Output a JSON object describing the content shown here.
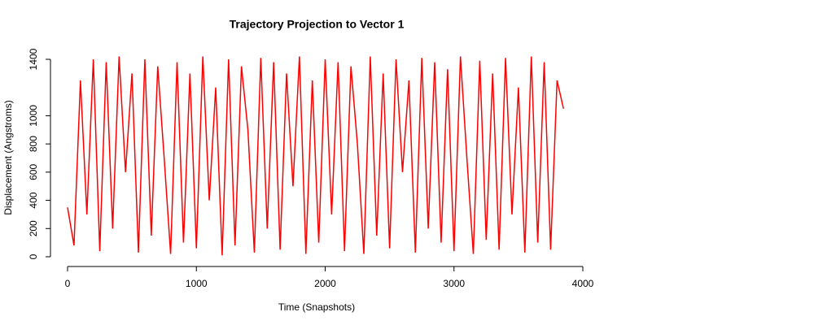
{
  "chart_data": {
    "type": "line",
    "title": "Trajectory Projection to Vector 1",
    "x_label": "Time (Snapshots)",
    "y_label": "Displacement (Angstroms)",
    "x": [
      0,
      50,
      100,
      150,
      200,
      250,
      300,
      350,
      400,
      450,
      500,
      550,
      600,
      650,
      700,
      750,
      800,
      850,
      900,
      950,
      1000,
      1050,
      1100,
      1150,
      1200,
      1250,
      1300,
      1350,
      1400,
      1450,
      1500,
      1550,
      1600,
      1650,
      1700,
      1750,
      1800,
      1850,
      1900,
      1950,
      2000,
      2050,
      2100,
      2150,
      2200,
      2250,
      2300,
      2350,
      2400,
      2450,
      2500,
      2550,
      2600,
      2650,
      2700,
      2750,
      2800,
      2850,
      2900,
      2950,
      3000,
      3050,
      3100,
      3150,
      3200,
      3250,
      3300,
      3350,
      3400,
      3450,
      3500,
      3550,
      3600,
      3650,
      3700,
      3750,
      3800,
      3850
    ],
    "series": [
      {
        "name": "Vector 1",
        "color": "#ff0000",
        "values": [
          350,
          80,
          1250,
          300,
          1400,
          40,
          1380,
          200,
          1420,
          600,
          1300,
          30,
          1400,
          150,
          1350,
          700,
          20,
          1380,
          100,
          1300,
          60,
          1420,
          400,
          1200,
          10,
          1400,
          80,
          1350,
          900,
          30,
          1410,
          200,
          1380,
          50,
          1300,
          500,
          1420,
          20,
          1250,
          100,
          1400,
          300,
          1380,
          40,
          1350,
          800,
          20,
          1420,
          150,
          1300,
          60,
          1400,
          600,
          1250,
          30,
          1410,
          200,
          1380,
          100,
          1330,
          40,
          1420,
          700,
          20,
          1390,
          120,
          1300,
          50,
          1410,
          300,
          1200,
          30,
          1420,
          100,
          1380,
          50,
          1250,
          1050
        ]
      }
    ],
    "xlim": [
      0,
      4000
    ],
    "xticks": [
      0,
      1000,
      2000,
      3000,
      4000
    ],
    "ylim": [
      0,
      1400
    ],
    "yticks": [
      0,
      200,
      400,
      600,
      800,
      1000,
      1400
    ]
  }
}
